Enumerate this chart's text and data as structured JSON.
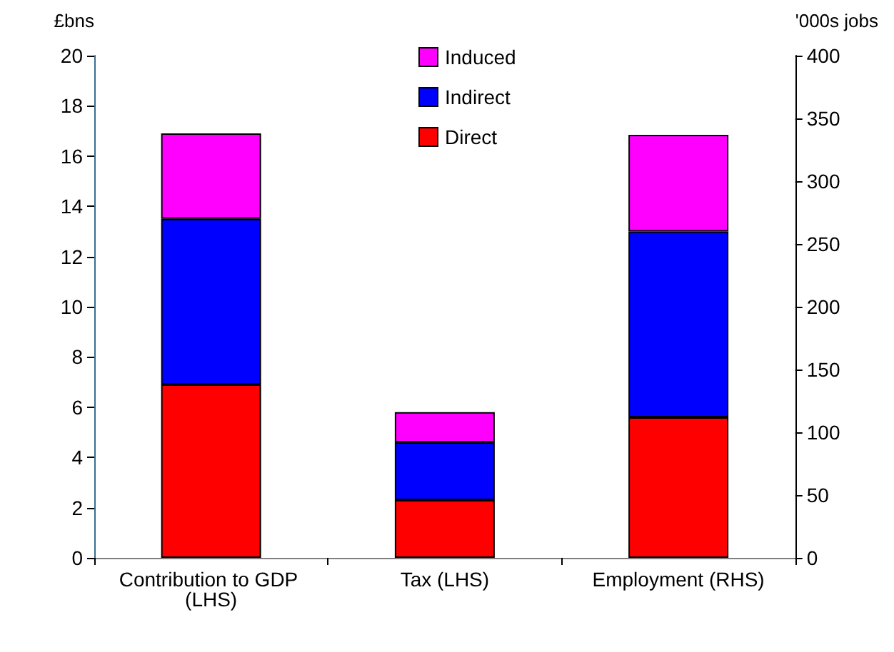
{
  "chart_data": {
    "type": "bar",
    "stacked": true,
    "ylabel": "£bns",
    "y2label": "'000s jobs",
    "categories": [
      "Contribution to GDP (LHS)",
      "Tax (LHS)",
      "Employment (RHS)"
    ],
    "series": [
      {
        "name": "Direct",
        "color": "#ff0000",
        "values": [
          6.9,
          2.3,
          null
        ]
      },
      {
        "name": "Indirect",
        "color": "#0000ff",
        "values": [
          6.6,
          2.3,
          null
        ]
      },
      {
        "name": "Induced",
        "color": "#ff00ff",
        "values": [
          3.4,
          1.2,
          null
        ]
      },
      {
        "color": "#ff0000",
        "axis": "y2",
        "values": [
          null,
          null,
          112
        ]
      },
      {
        "color": "#0000ff",
        "axis": "y2",
        "values": [
          null,
          null,
          148
        ]
      },
      {
        "color": "#ff00ff",
        "axis": "y2",
        "values": [
          null,
          null,
          77
        ]
      }
    ],
    "ylim": [
      0,
      20
    ],
    "yticks": [
      0,
      2,
      4,
      6,
      8,
      10,
      12,
      14,
      16,
      18,
      20
    ],
    "y2lim": [
      0,
      400
    ],
    "y2ticks": [
      0,
      50,
      100,
      150,
      200,
      250,
      300,
      350,
      400
    ],
    "legend": "top",
    "grid": false
  }
}
